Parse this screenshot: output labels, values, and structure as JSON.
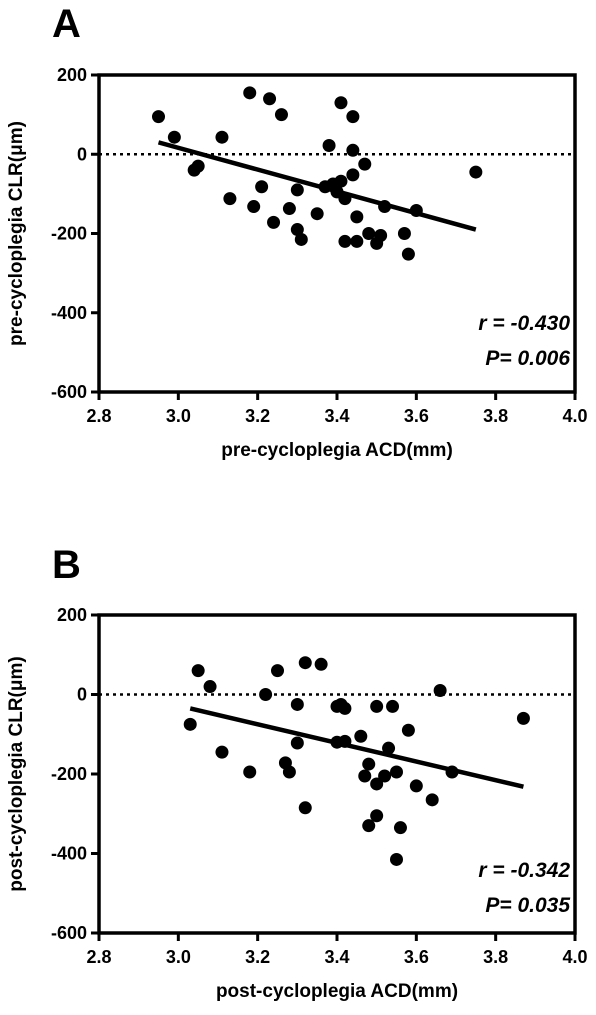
{
  "panels": {
    "a": {
      "letter": "A"
    },
    "b": {
      "letter": "B"
    }
  },
  "chart_data": [
    {
      "type": "scatter",
      "panel": "A",
      "xlabel": "pre-cycloplegia ACD(mm)",
      "ylabel": "pre-cycloplegia CLR(μm)",
      "xlim": [
        2.8,
        4.0
      ],
      "ylim": [
        -600,
        200
      ],
      "xticks": [
        "2.8",
        "3.0",
        "3.2",
        "3.4",
        "3.6",
        "3.8",
        "4.0"
      ],
      "yticks": [
        "200",
        "0",
        "-200",
        "-400",
        "-600"
      ],
      "reference_line_y": 0,
      "regression_line": {
        "x": [
          2.95,
          3.75
        ],
        "y": [
          30,
          -190
        ]
      },
      "annotations": {
        "r": "r = -0.430",
        "p": "P= 0.006"
      },
      "points": [
        {
          "x": 2.95,
          "y": 95
        },
        {
          "x": 2.99,
          "y": 43
        },
        {
          "x": 3.04,
          "y": -40
        },
        {
          "x": 3.05,
          "y": -30
        },
        {
          "x": 3.11,
          "y": 43
        },
        {
          "x": 3.13,
          "y": -112
        },
        {
          "x": 3.18,
          "y": 155
        },
        {
          "x": 3.19,
          "y": -132
        },
        {
          "x": 3.21,
          "y": -82
        },
        {
          "x": 3.23,
          "y": 140
        },
        {
          "x": 3.24,
          "y": -172
        },
        {
          "x": 3.26,
          "y": 100
        },
        {
          "x": 3.28,
          "y": -137
        },
        {
          "x": 3.3,
          "y": -90
        },
        {
          "x": 3.3,
          "y": -190
        },
        {
          "x": 3.31,
          "y": -215
        },
        {
          "x": 3.35,
          "y": -150
        },
        {
          "x": 3.37,
          "y": -82
        },
        {
          "x": 3.38,
          "y": 22
        },
        {
          "x": 3.39,
          "y": -75
        },
        {
          "x": 3.4,
          "y": -95
        },
        {
          "x": 3.41,
          "y": -68
        },
        {
          "x": 3.41,
          "y": 130
        },
        {
          "x": 3.42,
          "y": -112
        },
        {
          "x": 3.42,
          "y": -220
        },
        {
          "x": 3.44,
          "y": 95
        },
        {
          "x": 3.44,
          "y": 10
        },
        {
          "x": 3.44,
          "y": -52
        },
        {
          "x": 3.45,
          "y": -158
        },
        {
          "x": 3.45,
          "y": -220
        },
        {
          "x": 3.47,
          "y": -25
        },
        {
          "x": 3.48,
          "y": -200
        },
        {
          "x": 3.5,
          "y": -225
        },
        {
          "x": 3.51,
          "y": -205
        },
        {
          "x": 3.52,
          "y": -132
        },
        {
          "x": 3.57,
          "y": -200
        },
        {
          "x": 3.58,
          "y": -252
        },
        {
          "x": 3.6,
          "y": -142
        },
        {
          "x": 3.75,
          "y": -45
        }
      ]
    },
    {
      "type": "scatter",
      "panel": "B",
      "xlabel": "post-cycloplegia ACD(mm)",
      "ylabel": "post-cycloplegia CLR(μm)",
      "xlim": [
        2.8,
        4.0
      ],
      "ylim": [
        -600,
        200
      ],
      "xticks": [
        "2.8",
        "3.0",
        "3.2",
        "3.4",
        "3.6",
        "3.8",
        "4.0"
      ],
      "yticks": [
        "200",
        "0",
        "-200",
        "-400",
        "-600"
      ],
      "reference_line_y": 0,
      "regression_line": {
        "x": [
          3.03,
          3.87
        ],
        "y": [
          -35,
          -232
        ]
      },
      "annotations": {
        "r": "r = -0.342",
        "p": "P= 0.035"
      },
      "points": [
        {
          "x": 3.03,
          "y": -75
        },
        {
          "x": 3.05,
          "y": 60
        },
        {
          "x": 3.08,
          "y": 20
        },
        {
          "x": 3.11,
          "y": -145
        },
        {
          "x": 3.18,
          "y": -195
        },
        {
          "x": 3.22,
          "y": 0
        },
        {
          "x": 3.25,
          "y": 60
        },
        {
          "x": 3.27,
          "y": -172
        },
        {
          "x": 3.28,
          "y": -195
        },
        {
          "x": 3.3,
          "y": -25
        },
        {
          "x": 3.3,
          "y": -122
        },
        {
          "x": 3.32,
          "y": 80
        },
        {
          "x": 3.32,
          "y": -285
        },
        {
          "x": 3.36,
          "y": 76
        },
        {
          "x": 3.4,
          "y": -30
        },
        {
          "x": 3.4,
          "y": -120
        },
        {
          "x": 3.41,
          "y": -25
        },
        {
          "x": 3.42,
          "y": -118
        },
        {
          "x": 3.42,
          "y": -35
        },
        {
          "x": 3.46,
          "y": -105
        },
        {
          "x": 3.47,
          "y": -205
        },
        {
          "x": 3.48,
          "y": -175
        },
        {
          "x": 3.48,
          "y": -330
        },
        {
          "x": 3.5,
          "y": -225
        },
        {
          "x": 3.5,
          "y": -305
        },
        {
          "x": 3.5,
          "y": -30
        },
        {
          "x": 3.52,
          "y": -205
        },
        {
          "x": 3.53,
          "y": -135
        },
        {
          "x": 3.54,
          "y": -30
        },
        {
          "x": 3.55,
          "y": -195
        },
        {
          "x": 3.55,
          "y": -415
        },
        {
          "x": 3.56,
          "y": -335
        },
        {
          "x": 3.58,
          "y": -90
        },
        {
          "x": 3.6,
          "y": -230
        },
        {
          "x": 3.64,
          "y": -265
        },
        {
          "x": 3.66,
          "y": 10
        },
        {
          "x": 3.69,
          "y": -195
        },
        {
          "x": 3.87,
          "y": -60
        }
      ]
    }
  ]
}
